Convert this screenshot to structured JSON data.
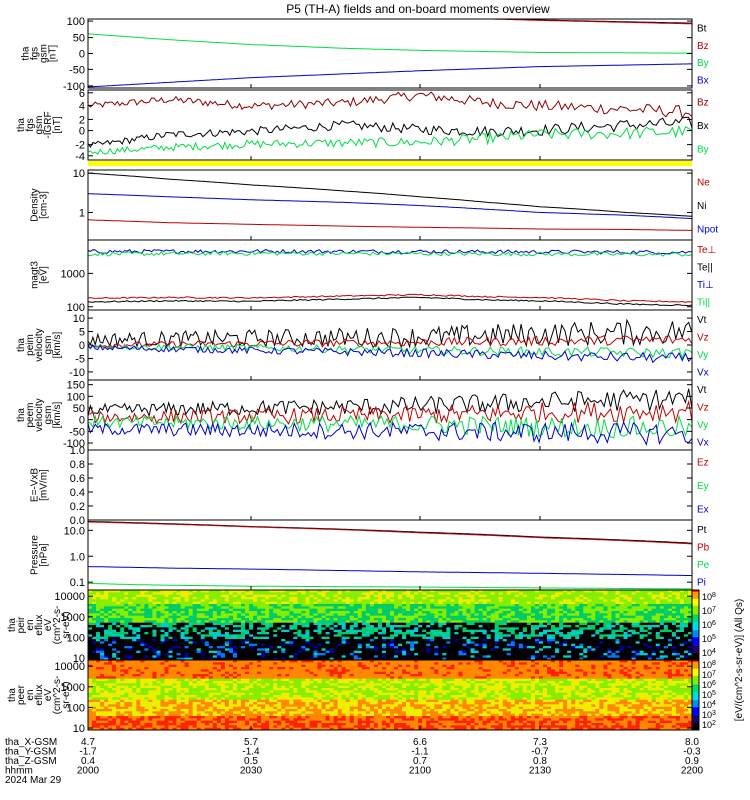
{
  "title": "P5 (TH-A) fields and on-board moments overview",
  "colors": {
    "black": "#000000",
    "red": "#c00000",
    "green": "#00dd44",
    "blue": "#0000cc",
    "yellow": "#ffff00",
    "dark_red": "#8b0000"
  },
  "chart_data": [
    {
      "type": "line",
      "id": "fgs",
      "ylabel": [
        "tha",
        "fgs",
        "gsm",
        "[nT]"
      ],
      "yticks": [
        "100",
        "50",
        "0",
        "-50",
        "-100"
      ],
      "ylim": [
        -100,
        100
      ],
      "legend": [
        {
          "name": "Bt",
          "color": "black"
        },
        {
          "name": "Bz",
          "color": "red"
        },
        {
          "name": "By",
          "color": "green"
        },
        {
          "name": "Bx",
          "color": "blue"
        }
      ],
      "series": [
        {
          "name": "Bt",
          "color": "black",
          "x": [
            4.7,
            5.7,
            6.6,
            7.3,
            8.0
          ],
          "values": [
            118,
            115,
            107,
            97,
            88
          ]
        },
        {
          "name": "Bz",
          "color": "red",
          "x": [
            4.7,
            5.7,
            6.6,
            7.3,
            8.0
          ],
          "values": [
            117,
            114,
            106,
            96,
            86
          ]
        },
        {
          "name": "By",
          "color": "green",
          "x": [
            4.7,
            5.2,
            5.7,
            6.2,
            6.6,
            7.3,
            8.0
          ],
          "values": [
            57,
            40,
            26,
            15,
            9,
            3,
            1
          ]
        },
        {
          "name": "Bx",
          "color": "blue",
          "x": [
            4.7,
            5.7,
            6.6,
            7.3,
            8.0
          ],
          "values": [
            -97,
            -70,
            -50,
            -38,
            -30
          ]
        }
      ]
    },
    {
      "type": "line",
      "id": "fgs_dB",
      "ylabel": [
        "tha",
        "fgs",
        "gsm",
        "-IGRF",
        "[nT]"
      ],
      "yticks": [
        "6",
        "4",
        "2",
        "0",
        "-2",
        "-4"
      ],
      "ylim": [
        -5,
        6
      ],
      "legend": [
        {
          "name": "Bz",
          "color": "dark_red"
        },
        {
          "name": "Bx",
          "color": "black"
        },
        {
          "name": "By",
          "color": "green"
        }
      ],
      "series": [
        {
          "name": "Bz",
          "color": "dark_red",
          "x": [
            4.7,
            5.2,
            5.7,
            6.2,
            6.6,
            7.0,
            7.3,
            7.7,
            8.0
          ],
          "values": [
            3.5,
            4.5,
            3.5,
            4.0,
            5.2,
            4.0,
            3.5,
            3.0,
            2.5
          ]
        },
        {
          "name": "Bx",
          "color": "black",
          "x": [
            4.7,
            5.2,
            5.7,
            6.2,
            6.6,
            7.0,
            7.3,
            7.7,
            8.0
          ],
          "values": [
            -2.8,
            -1.0,
            -0.5,
            0.5,
            -0.2,
            -0.5,
            -0.3,
            0.5,
            0.8
          ]
        },
        {
          "name": "By",
          "color": "green",
          "x": [
            4.7,
            5.2,
            5.7,
            6.2,
            6.6,
            7.0,
            7.3,
            7.7,
            8.0
          ],
          "values": [
            -3.8,
            -3.0,
            -2.5,
            -2.3,
            -2.2,
            -1.6,
            -1.0,
            -0.8,
            -0.5
          ]
        }
      ]
    },
    {
      "type": "line",
      "id": "density",
      "yscale": "log",
      "ylabel": [
        "Density",
        "[cm-3]"
      ],
      "yticks": [
        "10",
        "1"
      ],
      "ylim": [
        0.2,
        12
      ],
      "legend": [
        {
          "name": "Ne",
          "color": "red"
        },
        {
          "name": "Ni",
          "color": "black"
        },
        {
          "name": "Npot",
          "color": "blue"
        }
      ],
      "series": [
        {
          "name": "Ni",
          "color": "black",
          "x": [
            4.7,
            5.2,
            5.7,
            6.2,
            6.6,
            7.0,
            7.3,
            7.7,
            8.0
          ],
          "values": [
            10,
            7,
            5,
            3.5,
            2.5,
            1.8,
            1.4,
            1.0,
            0.8
          ]
        },
        {
          "name": "Npot",
          "color": "blue",
          "x": [
            4.7,
            5.2,
            5.7,
            6.2,
            6.6,
            7.0,
            7.3,
            7.7,
            8.0
          ],
          "values": [
            3.0,
            2.5,
            2.1,
            1.8,
            1.5,
            1.2,
            1.0,
            0.85,
            0.7
          ]
        },
        {
          "name": "Ne",
          "color": "red",
          "x": [
            4.7,
            5.2,
            5.7,
            6.2,
            6.6,
            7.0,
            7.3,
            7.7,
            8.0
          ],
          "values": [
            0.65,
            0.55,
            0.5,
            0.45,
            0.42,
            0.4,
            0.38,
            0.37,
            0.35
          ]
        }
      ]
    },
    {
      "type": "line",
      "id": "temperature",
      "yscale": "log",
      "ylabel": [
        "magt3",
        "[eV]"
      ],
      "yticks": [
        "1000",
        "100"
      ],
      "ylim": [
        80,
        10000
      ],
      "legend": [
        {
          "name": "Te⊥",
          "color": "red"
        },
        {
          "name": "Te||",
          "color": "black"
        },
        {
          "name": "Ti⊥",
          "color": "blue"
        },
        {
          "name": "Ti||",
          "color": "green"
        }
      ],
      "series": [
        {
          "name": "Ti⊥",
          "color": "blue",
          "x": [
            4.7,
            5.7,
            6.6,
            7.3,
            8.0
          ],
          "values": [
            4500,
            4600,
            4500,
            4400,
            4300
          ]
        },
        {
          "name": "Ti||",
          "color": "green",
          "x": [
            4.7,
            5.7,
            6.6,
            7.3,
            8.0
          ],
          "values": [
            3800,
            4000,
            3900,
            3800,
            3700
          ]
        },
        {
          "name": "Te⊥",
          "color": "red",
          "x": [
            4.7,
            5.2,
            5.7,
            6.2,
            6.6,
            7.0,
            7.3,
            7.7,
            8.0
          ],
          "values": [
            180,
            190,
            185,
            210,
            230,
            200,
            190,
            150,
            140
          ]
        },
        {
          "name": "Te||",
          "color": "black",
          "x": [
            4.7,
            5.2,
            5.7,
            6.2,
            6.6,
            7.0,
            7.3,
            7.7,
            8.0
          ],
          "values": [
            140,
            150,
            145,
            170,
            190,
            160,
            150,
            120,
            110
          ]
        }
      ]
    },
    {
      "type": "line",
      "id": "peim_velocity",
      "ylabel": [
        "tha",
        "peim",
        "velocity",
        "gsm",
        "[km/s]"
      ],
      "yticks": [
        "10",
        "5",
        "0",
        "-5",
        "-10"
      ],
      "ylim": [
        -13,
        13
      ],
      "legend": [
        {
          "name": "Vt",
          "color": "black"
        },
        {
          "name": "Vz",
          "color": "red"
        },
        {
          "name": "Vy",
          "color": "green"
        },
        {
          "name": "Vx",
          "color": "blue"
        }
      ],
      "series": [
        {
          "name": "Vt",
          "color": "black",
          "x": [
            4.7,
            5.7,
            6.6,
            7.3,
            8.0
          ],
          "values": [
            2,
            2.5,
            3,
            4,
            5
          ]
        },
        {
          "name": "Vz",
          "color": "red",
          "x": [
            4.7,
            5.7,
            6.6,
            7.3,
            8.0
          ],
          "values": [
            0,
            0.5,
            1,
            1.5,
            2
          ]
        },
        {
          "name": "Vy",
          "color": "green",
          "x": [
            4.7,
            5.7,
            6.6,
            7.3,
            8.0
          ],
          "values": [
            -0.5,
            -1,
            -2,
            -2.5,
            -3
          ]
        },
        {
          "name": "Vx",
          "color": "blue",
          "x": [
            4.7,
            5.7,
            6.6,
            7.3,
            8.0
          ],
          "values": [
            -1,
            -2,
            -3,
            -4,
            -5
          ]
        }
      ]
    },
    {
      "type": "line",
      "id": "peem_velocity",
      "ylabel": [
        "tha",
        "peem",
        "velocity",
        "gsm",
        "[km/s]"
      ],
      "yticks": [
        "150",
        "100",
        "50",
        "0",
        "-50",
        "-100"
      ],
      "ylim": [
        -130,
        170
      ],
      "legend": [
        {
          "name": "Vt",
          "color": "black"
        },
        {
          "name": "Vz",
          "color": "red"
        },
        {
          "name": "Vy",
          "color": "green"
        },
        {
          "name": "Vx",
          "color": "blue"
        }
      ],
      "series": [
        {
          "name": "Vt",
          "color": "black",
          "x": [
            4.7,
            5.7,
            6.6,
            7.3,
            8.0
          ],
          "values": [
            40,
            50,
            60,
            75,
            90
          ]
        },
        {
          "name": "Vz",
          "color": "red",
          "x": [
            4.7,
            5.7,
            6.6,
            7.3,
            8.0
          ],
          "values": [
            10,
            15,
            20,
            30,
            40
          ]
        },
        {
          "name": "Vy",
          "color": "green",
          "x": [
            4.7,
            5.7,
            6.6,
            7.3,
            8.0
          ],
          "values": [
            -10,
            -15,
            -20,
            -30,
            -35
          ]
        },
        {
          "name": "Vx",
          "color": "blue",
          "x": [
            4.7,
            5.7,
            6.6,
            7.3,
            8.0
          ],
          "values": [
            -40,
            -45,
            -50,
            -55,
            -60
          ]
        }
      ]
    },
    {
      "type": "line",
      "id": "efield",
      "ylabel": [
        "E=-VxB",
        "[mV/m]"
      ],
      "yticks": [
        "1.0",
        "0.8",
        "0.6",
        "0.4",
        "0.2",
        "0.0"
      ],
      "ylim": [
        0,
        1
      ],
      "legend": [
        {
          "name": "Ez",
          "color": "red"
        },
        {
          "name": "Ey",
          "color": "green"
        },
        {
          "name": "Ex",
          "color": "blue"
        }
      ],
      "series": []
    },
    {
      "type": "line",
      "id": "pressure",
      "yscale": "log",
      "ylabel": [
        "Pressure",
        "[nPa]"
      ],
      "yticks": [
        "10.0",
        "1.0",
        "0.1"
      ],
      "ylim": [
        0.05,
        25
      ],
      "legend": [
        {
          "name": "Pt",
          "color": "black"
        },
        {
          "name": "Pb",
          "color": "red"
        },
        {
          "name": "Pe",
          "color": "green"
        },
        {
          "name": "Pi",
          "color": "blue"
        }
      ],
      "series": [
        {
          "name": "Pt",
          "color": "black",
          "x": [
            4.7,
            5.7,
            6.6,
            7.3,
            8.0
          ],
          "values": [
            22,
            14,
            8.5,
            5.5,
            3.2
          ]
        },
        {
          "name": "Pb",
          "color": "red",
          "x": [
            4.7,
            5.7,
            6.6,
            7.3,
            8.0
          ],
          "values": [
            21,
            13.5,
            8,
            5.2,
            3.0
          ]
        },
        {
          "name": "Pi",
          "color": "blue",
          "x": [
            4.7,
            5.2,
            5.7,
            6.2,
            6.6,
            7.3,
            8.0
          ],
          "values": [
            0.4,
            0.35,
            0.32,
            0.28,
            0.25,
            0.22,
            0.18
          ]
        },
        {
          "name": "Pe",
          "color": "green",
          "x": [
            4.7,
            5.0,
            5.3,
            5.7,
            6.6,
            7.3,
            8.0
          ],
          "values": [
            0.09,
            0.08,
            0.075,
            0.07,
            0.065,
            0.06,
            0.055
          ]
        }
      ]
    },
    {
      "type": "heatmap",
      "id": "peir",
      "ylabel": [
        "tha",
        "peir",
        "en",
        "eflux",
        "eV",
        "(cm^2-s-",
        "sr-eV)"
      ],
      "yticks": [
        "10000",
        "1000",
        "100",
        "10"
      ],
      "ylim": [
        8,
        20000
      ]
    },
    {
      "type": "heatmap",
      "id": "peer",
      "ylabel": [
        "tha",
        "peer",
        "en",
        "eflux",
        "eV",
        "(cm^2-s-",
        "sr-eV)"
      ],
      "yticks": [
        "10000",
        "1000",
        "100",
        "10"
      ],
      "ylim": [
        8,
        20000
      ]
    }
  ],
  "colorbar_top": {
    "ticks": [
      "10^8",
      "10^7",
      "10^6",
      "10^5",
      "10^4"
    ]
  },
  "colorbar_bottom": {
    "ticks": [
      "10^8",
      "10^7",
      "10^6",
      "10^5",
      "10^4",
      "10^3",
      "10^2"
    ]
  },
  "colorbar_label": "[eV/(cm^2-s-sr-eV)] (All Qs)",
  "x_axis": {
    "ticks": [
      4.7,
      5.7,
      6.6,
      7.3,
      8.0
    ],
    "rows": [
      {
        "label": "tha_X-GSM",
        "values": [
          "4.7",
          "5.7",
          "6.6",
          "7.3",
          "8.0"
        ]
      },
      {
        "label": "tha_Y-GSM",
        "values": [
          "-1.7",
          "-1.4",
          "-1.1",
          "-0.7",
          "-0.3"
        ]
      },
      {
        "label": "tha_Z-GSM",
        "values": [
          "0.4",
          "0.5",
          "0.7",
          "0.8",
          "0.9"
        ]
      },
      {
        "label": "hhmm",
        "values": [
          "2000",
          "2030",
          "2100",
          "2130",
          "2200"
        ]
      }
    ],
    "date": "2024 Mar 29"
  }
}
